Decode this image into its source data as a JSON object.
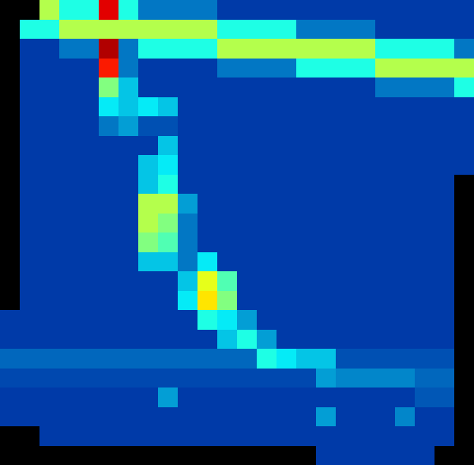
{
  "chart_data": {
    "type": "heatmap",
    "tick_labels": false,
    "zlim": [
      0,
      1
    ],
    "cells": [
      [
        null,
        null,
        0.55,
        0.4,
        0.4,
        0.9,
        0.4,
        0.2,
        0.2,
        0.2,
        0.2,
        0.12,
        0.12,
        0.12,
        0.12,
        0.12,
        0.12,
        0.12,
        0.12,
        0.12,
        0.12,
        0.12,
        0.12,
        0.12
      ],
      [
        null,
        0.4,
        0.4,
        0.55,
        0.55,
        0.55,
        0.55,
        0.55,
        0.55,
        0.55,
        0.55,
        0.4,
        0.4,
        0.4,
        0.4,
        0.2,
        0.2,
        0.2,
        0.2,
        0.12,
        0.12,
        0.12,
        0.12,
        0.12
      ],
      [
        null,
        0.12,
        0.12,
        0.2,
        0.2,
        0.95,
        0.2,
        0.4,
        0.4,
        0.4,
        0.4,
        0.55,
        0.55,
        0.55,
        0.55,
        0.55,
        0.55,
        0.55,
        0.55,
        0.4,
        0.4,
        0.4,
        0.4,
        0.2
      ],
      [
        null,
        0.12,
        0.12,
        0.12,
        0.12,
        0.85,
        0.2,
        0.12,
        0.12,
        0.12,
        0.12,
        0.2,
        0.2,
        0.2,
        0.2,
        0.4,
        0.4,
        0.4,
        0.4,
        0.55,
        0.55,
        0.55,
        0.55,
        0.55
      ],
      [
        null,
        0.12,
        0.12,
        0.12,
        0.12,
        0.5,
        0.3,
        0.12,
        0.12,
        0.12,
        0.12,
        0.12,
        0.12,
        0.12,
        0.12,
        0.12,
        0.12,
        0.12,
        0.12,
        0.2,
        0.2,
        0.2,
        0.2,
        0.4
      ],
      [
        null,
        0.12,
        0.12,
        0.12,
        0.12,
        0.35,
        0.3,
        0.35,
        0.3,
        0.12,
        0.12,
        0.12,
        0.12,
        0.12,
        0.12,
        0.12,
        0.12,
        0.12,
        0.12,
        0.12,
        0.12,
        0.12,
        0.12,
        0.12
      ],
      [
        null,
        0.12,
        0.12,
        0.12,
        0.12,
        0.2,
        0.25,
        0.15,
        0.15,
        0.12,
        0.12,
        0.12,
        0.12,
        0.12,
        0.12,
        0.12,
        0.12,
        0.12,
        0.12,
        0.12,
        0.12,
        0.12,
        0.12,
        0.12
      ],
      [
        null,
        0.12,
        0.12,
        0.12,
        0.12,
        0.12,
        0.12,
        0.12,
        0.3,
        0.12,
        0.12,
        0.12,
        0.12,
        0.12,
        0.12,
        0.12,
        0.12,
        0.12,
        0.12,
        0.12,
        0.12,
        0.12,
        0.12,
        0.12
      ],
      [
        null,
        0.12,
        0.12,
        0.12,
        0.12,
        0.12,
        0.12,
        0.3,
        0.35,
        0.12,
        0.12,
        0.12,
        0.12,
        0.12,
        0.12,
        0.12,
        0.12,
        0.12,
        0.12,
        0.12,
        0.12,
        0.12,
        0.12,
        0.12
      ],
      [
        null,
        0.12,
        0.12,
        0.12,
        0.12,
        0.12,
        0.12,
        0.3,
        0.4,
        0.12,
        0.12,
        0.12,
        0.12,
        0.12,
        0.12,
        0.12,
        0.12,
        0.12,
        0.12,
        0.12,
        0.12,
        0.12,
        0.12,
        null
      ],
      [
        null,
        0.12,
        0.12,
        0.12,
        0.12,
        0.12,
        0.12,
        0.55,
        0.55,
        0.25,
        0.12,
        0.12,
        0.12,
        0.12,
        0.12,
        0.12,
        0.12,
        0.12,
        0.12,
        0.12,
        0.12,
        0.12,
        0.12,
        null
      ],
      [
        null,
        0.12,
        0.12,
        0.12,
        0.12,
        0.12,
        0.12,
        0.55,
        0.5,
        0.2,
        0.12,
        0.12,
        0.12,
        0.12,
        0.12,
        0.12,
        0.12,
        0.12,
        0.12,
        0.12,
        0.12,
        0.12,
        0.12,
        null
      ],
      [
        null,
        0.12,
        0.12,
        0.12,
        0.12,
        0.12,
        0.12,
        0.5,
        0.45,
        0.2,
        0.12,
        0.12,
        0.12,
        0.12,
        0.12,
        0.12,
        0.12,
        0.12,
        0.12,
        0.12,
        0.12,
        0.12,
        0.12,
        null
      ],
      [
        null,
        0.12,
        0.12,
        0.12,
        0.12,
        0.12,
        0.12,
        0.3,
        0.3,
        0.2,
        0.35,
        0.12,
        0.12,
        0.12,
        0.12,
        0.12,
        0.12,
        0.12,
        0.12,
        0.12,
        0.12,
        0.12,
        0.12,
        null
      ],
      [
        null,
        0.12,
        0.12,
        0.12,
        0.12,
        0.12,
        0.12,
        0.12,
        0.12,
        0.3,
        0.6,
        0.45,
        0.12,
        0.12,
        0.12,
        0.12,
        0.12,
        0.12,
        0.12,
        0.12,
        0.12,
        0.12,
        0.12,
        null
      ],
      [
        null,
        0.12,
        0.12,
        0.12,
        0.12,
        0.12,
        0.12,
        0.12,
        0.12,
        0.35,
        0.65,
        0.5,
        0.12,
        0.12,
        0.12,
        0.12,
        0.12,
        0.12,
        0.12,
        0.12,
        0.12,
        0.12,
        0.12,
        null
      ],
      [
        0.12,
        0.12,
        0.12,
        0.12,
        0.12,
        0.12,
        0.12,
        0.12,
        0.12,
        0.12,
        0.4,
        0.35,
        0.25,
        0.12,
        0.12,
        0.12,
        0.12,
        0.12,
        0.12,
        0.12,
        0.12,
        0.12,
        0.12,
        null
      ],
      [
        0.12,
        0.12,
        0.12,
        0.12,
        0.12,
        0.12,
        0.12,
        0.12,
        0.12,
        0.12,
        0.12,
        0.3,
        0.4,
        0.25,
        0.12,
        0.12,
        0.12,
        0.12,
        0.12,
        0.12,
        0.12,
        0.12,
        0.12,
        null
      ],
      [
        0.18,
        0.18,
        0.18,
        0.18,
        0.18,
        0.18,
        0.18,
        0.18,
        0.18,
        0.18,
        0.18,
        0.18,
        0.18,
        0.4,
        0.35,
        0.3,
        0.3,
        0.15,
        0.15,
        0.15,
        0.15,
        0.15,
        0.15,
        null
      ],
      [
        0.14,
        0.14,
        0.14,
        0.14,
        0.14,
        0.14,
        0.14,
        0.14,
        0.14,
        0.14,
        0.14,
        0.14,
        0.14,
        0.14,
        0.14,
        0.14,
        0.25,
        0.22,
        0.22,
        0.22,
        0.22,
        0.18,
        0.18,
        null
      ],
      [
        0.12,
        0.12,
        0.12,
        0.12,
        0.12,
        0.12,
        0.12,
        0.12,
        0.25,
        0.12,
        0.12,
        0.12,
        0.12,
        0.12,
        0.12,
        0.12,
        0.12,
        0.12,
        0.12,
        0.12,
        0.12,
        0.16,
        0.16,
        null
      ],
      [
        0.12,
        0.12,
        0.12,
        0.12,
        0.12,
        0.12,
        0.12,
        0.12,
        0.12,
        0.12,
        0.12,
        0.12,
        0.12,
        0.12,
        0.12,
        0.12,
        0.25,
        0.12,
        0.12,
        0.12,
        0.22,
        0.12,
        0.12,
        null
      ],
      [
        null,
        null,
        0.12,
        0.12,
        0.12,
        0.12,
        0.12,
        0.12,
        0.12,
        0.12,
        0.12,
        0.12,
        0.12,
        0.12,
        0.12,
        0.12,
        0.12,
        0.12,
        0.12,
        0.12,
        0.12,
        0.12,
        0.12,
        null
      ],
      [
        null,
        null,
        null,
        null,
        null,
        null,
        null,
        null,
        null,
        null,
        null,
        null,
        null,
        null,
        null,
        null,
        0.12,
        0.12,
        0.12,
        0.12,
        0.12,
        0.12,
        null,
        null
      ]
    ]
  }
}
